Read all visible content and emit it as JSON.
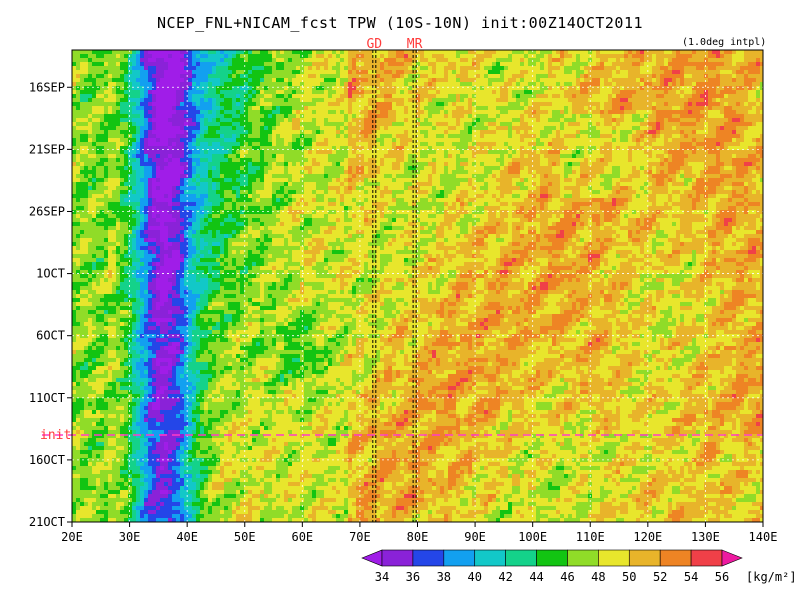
{
  "chart_data": {
    "type": "heatmap",
    "title": "NCEP_FNL+NICAM_fcst TPW (10S-10N) init:00Z14OCT2011",
    "note": "(1.0deg intpl)",
    "x": {
      "ticks": [
        "20E",
        "30E",
        "40E",
        "50E",
        "60E",
        "70E",
        "80E",
        "90E",
        "100E",
        "110E",
        "120E",
        "130E",
        "140E"
      ],
      "range": [
        20,
        140
      ]
    },
    "y": {
      "ticks": [
        "16SEP",
        "21SEP",
        "26SEP",
        "1OCT",
        "6OCT",
        "11OCT",
        "16OCT",
        "21OCT"
      ],
      "tick_days": [
        3,
        8,
        13,
        18,
        23,
        28,
        33,
        38
      ],
      "range_days": [
        0,
        38
      ],
      "direction": "time increases downward"
    },
    "init": {
      "label": "init",
      "day": 31,
      "color": "#ff3bc8"
    },
    "markers": [
      {
        "label": "GD",
        "lon": 72.5
      },
      {
        "label": "MR",
        "lon": 79.5
      }
    ],
    "colorbar": {
      "levels": [
        34,
        36,
        38,
        40,
        42,
        44,
        46,
        48,
        50,
        52,
        54,
        56
      ],
      "colors": [
        "#a01de8",
        "#8a22d8",
        "#2446e8",
        "#12a0f0",
        "#12c8c8",
        "#14d28a",
        "#12c412",
        "#90dc28",
        "#e8e62c",
        "#e8b42a",
        "#ee8424",
        "#f04048",
        "#ee1aa0"
      ],
      "unit": "[kg/m²]"
    }
  }
}
